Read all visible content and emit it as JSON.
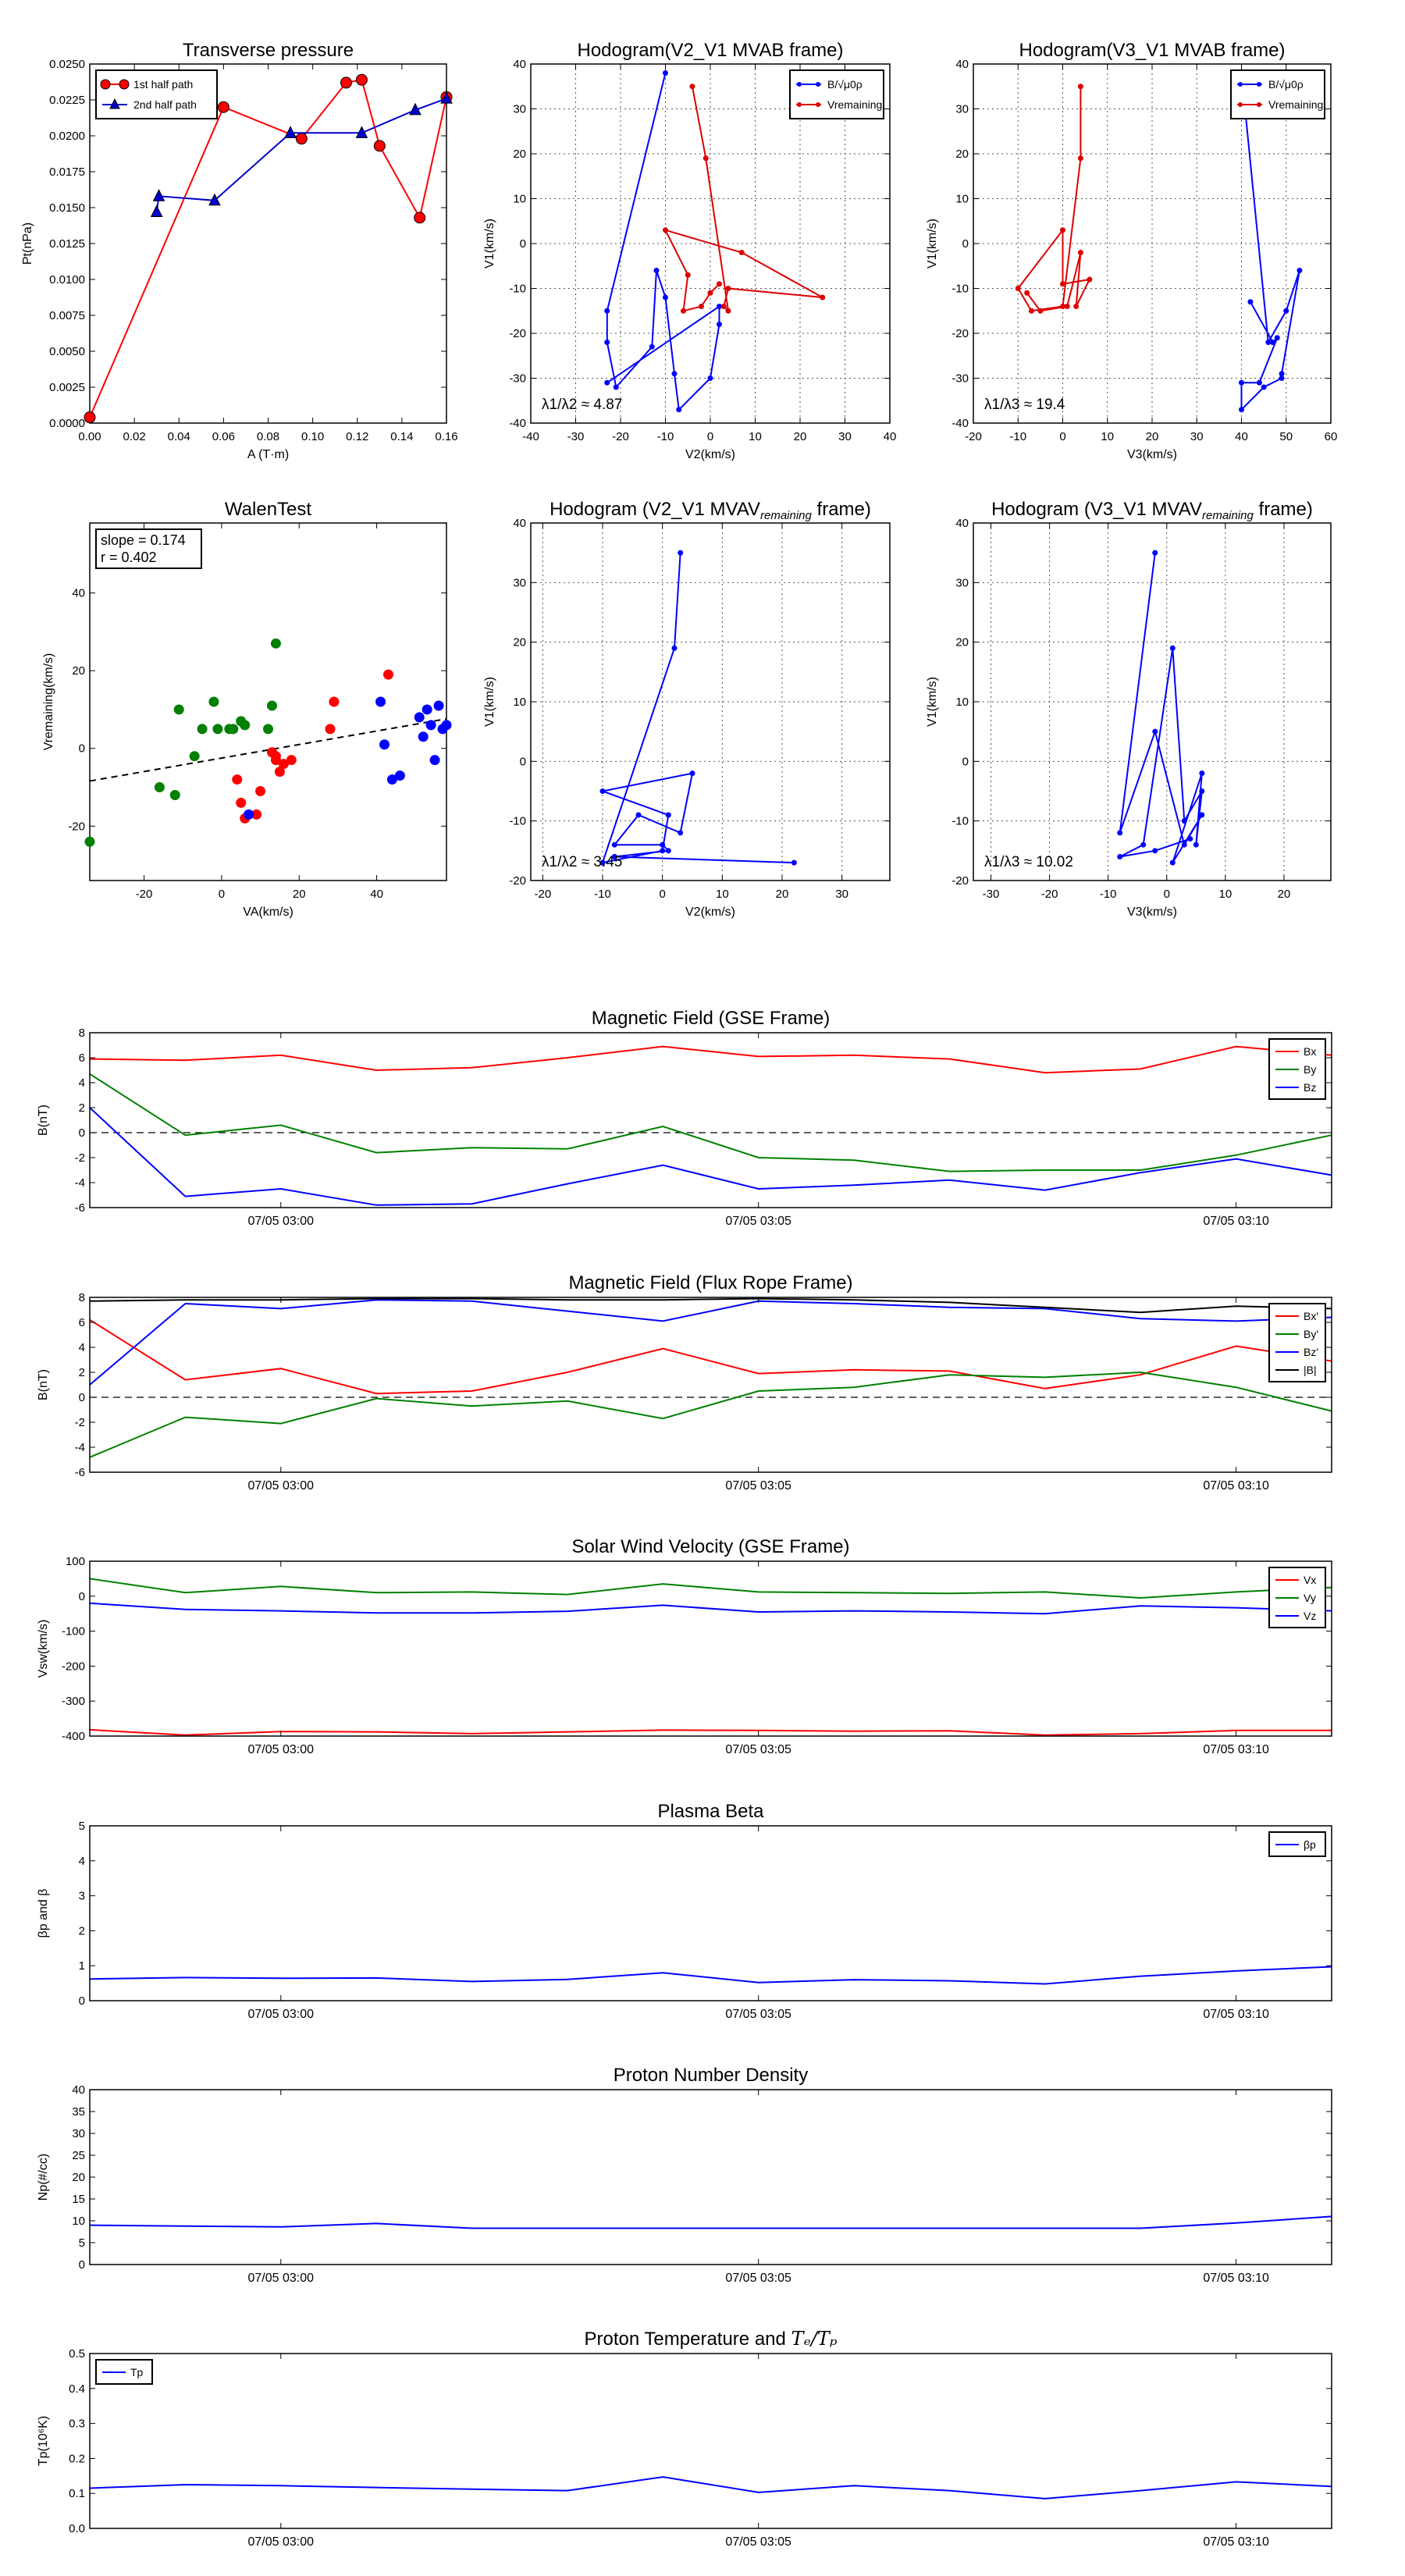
{
  "time_axis": {
    "tick_labels": [
      "07/05 03:00",
      "07/05 03:05",
      "07/05 03:10"
    ],
    "tick_index": [
      2,
      7,
      12
    ],
    "n_points": 14
  },
  "chart_data": [
    {
      "id": "transverse-pressure",
      "type": "line",
      "title": "Transverse pressure",
      "xlabel": "A (T·m)",
      "ylabel": "Pt(nPa)",
      "xlim": [
        0,
        0.16
      ],
      "ylim": [
        0,
        0.025
      ],
      "xticks": [
        0.0,
        0.02,
        0.04,
        0.06,
        0.08,
        0.1,
        0.12,
        0.14,
        0.16
      ],
      "xtick_labels": [
        "0.00",
        "0.02",
        "0.04",
        "0.06",
        "0.08",
        "0.10",
        "0.12",
        "0.14",
        "0.16"
      ],
      "yticks": [
        0,
        0.0025,
        0.005,
        0.0075,
        0.01,
        0.0125,
        0.015,
        0.0175,
        0.02,
        0.0225,
        0.025
      ],
      "ytick_labels": [
        "0.0000",
        "0.0025",
        "0.0050",
        "0.0075",
        "0.0100",
        "0.0125",
        "0.0150",
        "0.0175",
        "0.0200",
        "0.0225",
        "0.0250"
      ],
      "grid": false,
      "legend": "top-left",
      "series": [
        {
          "name": "1st half path",
          "color": "#ff0000",
          "marker": "circle",
          "x": [
            0.0,
            0.06,
            0.095,
            0.115,
            0.122,
            0.13,
            0.148,
            0.16
          ],
          "y": [
            0.0004,
            0.022,
            0.0198,
            0.0237,
            0.0239,
            0.0193,
            0.0143,
            0.0227
          ]
        },
        {
          "name": "2nd half path",
          "color": "#0000cc",
          "marker": "triangle",
          "x": [
            0.03,
            0.031,
            0.056,
            0.09,
            0.122,
            0.146,
            0.16
          ],
          "y": [
            0.0147,
            0.0158,
            0.0155,
            0.0202,
            0.0202,
            0.0218,
            0.0226
          ]
        }
      ]
    },
    {
      "id": "hodogram-v2-v1-mvab",
      "type": "line",
      "title": "Hodogram(V2_V1 MVAB frame)",
      "xlabel": "V2(km/s)",
      "ylabel": "V1(km/s)",
      "xlim": [
        -40,
        40
      ],
      "ylim": [
        -40,
        40
      ],
      "xticks": [
        -40,
        -30,
        -20,
        -10,
        0,
        10,
        20,
        30,
        40
      ],
      "yticks": [
        -40,
        -30,
        -20,
        -10,
        0,
        10,
        20,
        30,
        40
      ],
      "grid": true,
      "legend": "top-right",
      "annotation": "λ1/λ2 ≈ 4.87",
      "series": [
        {
          "name": "B/√μ0ρ",
          "color": "#0000ff",
          "marker": "dot",
          "x": [
            -10,
            -23,
            -23,
            -21,
            -13,
            -12,
            -10,
            -8,
            -7,
            0,
            2,
            2,
            -23
          ],
          "y": [
            38,
            -15,
            -22,
            -32,
            -23,
            -6,
            -12,
            -29,
            -37,
            -30,
            -18,
            -14,
            -31
          ]
        },
        {
          "name": "Vremaining",
          "color": "#dd0000",
          "marker": "dot",
          "x": [
            -4,
            -1,
            4,
            3,
            4,
            25,
            7,
            -10,
            -5,
            -6,
            -2,
            0,
            2
          ],
          "y": [
            35,
            19,
            -15,
            -14,
            -10,
            -12,
            -2,
            3,
            -7,
            -15,
            -14,
            -11,
            -9
          ]
        }
      ]
    },
    {
      "id": "hodogram-v3-v1-mvab",
      "type": "line",
      "title": "Hodogram(V3_V1 MVAB frame)",
      "xlabel": "V3(km/s)",
      "ylabel": "V1(km/s)",
      "xlim": [
        -20,
        60
      ],
      "ylim": [
        -40,
        40
      ],
      "xticks": [
        -20,
        -10,
        0,
        10,
        20,
        30,
        40,
        50,
        60
      ],
      "yticks": [
        -40,
        -30,
        -20,
        -10,
        0,
        10,
        20,
        30,
        40
      ],
      "grid": true,
      "legend": "top-right",
      "annotation": "λ1/λ3 ≈ 19.4",
      "series": [
        {
          "name": "B/√μ0ρ",
          "color": "#0000ff",
          "marker": "dot",
          "x": [
            40,
            46,
            50,
            53,
            49,
            49,
            45,
            40,
            40,
            44,
            48,
            47,
            42
          ],
          "y": [
            38,
            -22,
            -15,
            -6,
            -29,
            -30,
            -32,
            -37,
            -31,
            -31,
            -21,
            -22,
            -13
          ]
        },
        {
          "name": "Vremaining",
          "color": "#dd0000",
          "marker": "dot",
          "x": [
            4,
            4,
            0,
            -7,
            -10,
            0,
            0,
            6,
            3,
            4,
            1,
            -5,
            -8
          ],
          "y": [
            35,
            19,
            -14,
            -15,
            -10,
            3,
            -9,
            -8,
            -14,
            -2,
            -14,
            -15,
            -11
          ]
        }
      ]
    },
    {
      "id": "walen-test",
      "type": "scatter",
      "title": "WalenTest",
      "xlabel": "VA(km/s)",
      "ylabel": "Vremaining(km/s)",
      "xlim": [
        -34,
        58
      ],
      "ylim": [
        -34,
        58
      ],
      "xticks": [
        -20,
        0,
        20,
        40
      ],
      "yticks": [
        -20,
        0,
        20,
        40
      ],
      "grid": false,
      "annotation_slope": "slope = 0.174",
      "annotation_r": "r = 0.402",
      "fit_line": {
        "x": [
          -34,
          58
        ],
        "y": [
          -8.4,
          7.6
        ]
      },
      "series": [
        {
          "name": "",
          "color": "#008000",
          "x": [
            -34,
            -16,
            -12,
            -11,
            -7,
            -5,
            -2,
            -1,
            2,
            3,
            5,
            6,
            12,
            13,
            14
          ],
          "y": [
            -24,
            -10,
            -12,
            10,
            -2,
            5,
            12,
            5,
            5,
            5,
            7,
            6,
            5,
            11,
            27
          ]
        },
        {
          "name": "",
          "color": "#ff0000",
          "x": [
            4,
            5,
            6,
            9,
            10,
            13,
            14,
            14,
            15,
            16,
            18,
            28,
            29,
            43
          ],
          "y": [
            -8,
            -14,
            -18,
            -17,
            -11,
            -1,
            -3,
            -2,
            -6,
            -4,
            -3,
            5,
            12,
            19
          ]
        },
        {
          "name": "",
          "color": "#0000ff",
          "x": [
            7,
            41,
            42,
            44,
            46,
            51,
            52,
            53,
            54,
            55,
            56,
            57,
            58
          ],
          "y": [
            -17,
            12,
            1,
            -8,
            -7,
            8,
            3,
            10,
            6,
            -3,
            11,
            5,
            6
          ]
        }
      ]
    },
    {
      "id": "hodogram-v2-v1-mvav",
      "type": "line",
      "title": "Hodogram (V2_V1 MVAV",
      "title_sub": "remaining",
      "title_end": " frame)",
      "xlabel": "V2(km/s)",
      "ylabel": "V1(km/s)",
      "xlim": [
        -22,
        38
      ],
      "ylim": [
        -20,
        40
      ],
      "xticks": [
        -20,
        -10,
        0,
        10,
        20,
        30
      ],
      "yticks": [
        -20,
        -10,
        0,
        10,
        20,
        30,
        40
      ],
      "grid": true,
      "annotation": "λ1/λ2 ≈ 3.45",
      "series": [
        {
          "name": "",
          "color": "#0000ff",
          "marker": "dot",
          "x": [
            3,
            2,
            -10,
            0,
            1,
            -10,
            5,
            3,
            -4,
            -8,
            0,
            1,
            -8,
            -8,
            22
          ],
          "y": [
            35,
            19,
            -17,
            -15,
            -9,
            -5,
            -2,
            -12,
            -9,
            -14,
            -14,
            -15,
            -16,
            -16,
            -17
          ]
        }
      ]
    },
    {
      "id": "hodogram-v3-v1-mvav",
      "type": "line",
      "title": "Hodogram (V3_V1 MVAV",
      "title_sub": "remaining",
      "title_end": " frame)",
      "xlabel": "V3(km/s)",
      "ylabel": "V1(km/s)",
      "xlim": [
        -33,
        28
      ],
      "ylim": [
        -20,
        40
      ],
      "xticks": [
        -30,
        -20,
        -10,
        0,
        10,
        20
      ],
      "yticks": [
        -20,
        -10,
        0,
        10,
        20,
        30,
        40
      ],
      "grid": true,
      "annotation": "λ1/λ3 ≈ 10.02",
      "series": [
        {
          "name": "",
          "color": "#0000ff",
          "marker": "dot",
          "x": [
            -2,
            -8,
            -2,
            3,
            6,
            1,
            6,
            5,
            6,
            3,
            1,
            -4,
            -8,
            -2,
            4
          ],
          "y": [
            35,
            -12,
            5,
            -14,
            -9,
            -17,
            -2,
            -14,
            -5,
            -10,
            19,
            -14,
            -16,
            -15,
            -13
          ]
        }
      ]
    },
    {
      "id": "magnetic-field-gse",
      "type": "line",
      "title": "Magnetic Field (GSE Frame)",
      "ylabel": "B(nT)",
      "ylim": [
        -6,
        8
      ],
      "yticks": [
        -6,
        -4,
        -2,
        0,
        2,
        4,
        6,
        8
      ],
      "zero_line": true,
      "legend": "top-right",
      "series": [
        {
          "name": "Bx",
          "color": "#ff0000",
          "values": [
            5.9,
            5.8,
            6.2,
            5.0,
            5.2,
            6.0,
            6.9,
            6.1,
            6.2,
            5.9,
            4.8,
            5.1,
            6.9,
            6.2
          ]
        },
        {
          "name": "By",
          "color": "#008000",
          "values": [
            4.7,
            -0.2,
            0.6,
            -1.6,
            -1.2,
            -1.3,
            0.5,
            -2.0,
            -2.2,
            -3.1,
            -3.0,
            -3.0,
            -1.8,
            -0.2
          ]
        },
        {
          "name": "Bz",
          "color": "#0000ff",
          "values": [
            2.0,
            -5.1,
            -4.5,
            -5.8,
            -5.7,
            -4.1,
            -2.6,
            -4.5,
            -4.2,
            -3.8,
            -4.6,
            -3.2,
            -2.1,
            -3.4
          ]
        }
      ]
    },
    {
      "id": "magnetic-field-flux-rope",
      "type": "line",
      "title": "Magnetic Field (Flux Rope Frame)",
      "ylabel": "B(nT)",
      "ylim": [
        -6,
        8
      ],
      "yticks": [
        -6,
        -4,
        -2,
        0,
        2,
        4,
        6,
        8
      ],
      "zero_line": true,
      "legend": "top-right",
      "series": [
        {
          "name": "Bx'",
          "color": "#ff0000",
          "values": [
            6.2,
            1.4,
            2.3,
            0.3,
            0.5,
            2.0,
            3.9,
            1.9,
            2.2,
            2.1,
            0.7,
            1.8,
            4.1,
            2.9
          ]
        },
        {
          "name": "By'",
          "color": "#008000",
          "values": [
            -4.8,
            -1.6,
            -2.1,
            -0.1,
            -0.7,
            -0.3,
            -1.7,
            0.5,
            0.8,
            1.8,
            1.6,
            2.0,
            0.8,
            -1.1
          ]
        },
        {
          "name": "Bz'",
          "color": "#0000ff",
          "values": [
            1.0,
            7.5,
            7.1,
            7.8,
            7.7,
            6.9,
            6.1,
            7.7,
            7.5,
            7.2,
            7.1,
            6.3,
            6.1,
            6.4
          ]
        },
        {
          "name": "|B|",
          "color": "#000000",
          "values": [
            7.7,
            7.8,
            7.8,
            7.9,
            7.9,
            7.8,
            7.8,
            7.9,
            7.8,
            7.6,
            7.2,
            6.8,
            7.3,
            7.1
          ]
        }
      ]
    },
    {
      "id": "solar-wind-velocity",
      "type": "line",
      "title": "Solar Wind Velocity (GSE Frame)",
      "ylabel": "Vsw(km/s)",
      "ylim": [
        -400,
        100
      ],
      "yticks": [
        -400,
        -300,
        -200,
        -100,
        0,
        100
      ],
      "legend": "top-right",
      "series": [
        {
          "name": "Vx",
          "color": "#ff0000",
          "values": [
            -382,
            -397,
            -387,
            -388,
            -393,
            -388,
            -383,
            -384,
            -386,
            -385,
            -397,
            -393,
            -384,
            -384
          ]
        },
        {
          "name": "Vy",
          "color": "#008000",
          "values": [
            50,
            10,
            28,
            10,
            12,
            5,
            35,
            12,
            10,
            8,
            12,
            -5,
            12,
            25
          ]
        },
        {
          "name": "Vz",
          "color": "#0000ff",
          "values": [
            -20,
            -38,
            -42,
            -48,
            -48,
            -43,
            -26,
            -45,
            -42,
            -45,
            -50,
            -28,
            -33,
            -42
          ]
        }
      ]
    },
    {
      "id": "plasma-beta",
      "type": "line",
      "title": "Plasma Beta",
      "ylabel": "βp and β",
      "ylim": [
        0,
        5
      ],
      "yticks": [
        0,
        1,
        2,
        3,
        4,
        5
      ],
      "legend": "top-right",
      "series": [
        {
          "name": "βp",
          "color": "#0000ff",
          "values": [
            0.62,
            0.66,
            0.64,
            0.65,
            0.55,
            0.61,
            0.8,
            0.52,
            0.6,
            0.57,
            0.48,
            0.7,
            0.85,
            0.97
          ]
        }
      ]
    },
    {
      "id": "proton-number-density",
      "type": "line",
      "title": "Proton Number Density",
      "ylabel": "Np(#/cc)",
      "ylim": [
        0,
        40
      ],
      "yticks": [
        0,
        5,
        10,
        15,
        20,
        25,
        30,
        35,
        40
      ],
      "series": [
        {
          "name": "",
          "color": "#0000ff",
          "values": [
            9.0,
            8.8,
            8.6,
            9.4,
            8.3,
            8.3,
            8.3,
            8.3,
            8.3,
            8.3,
            8.3,
            8.3,
            9.5,
            11.0
          ]
        }
      ]
    },
    {
      "id": "proton-temperature",
      "type": "line",
      "title": "Proton Temperature and ",
      "title_math": "Tₑ/Tₚ",
      "ylabel": "Tp(10⁶K)",
      "ylim": [
        0,
        0.5
      ],
      "yticks": [
        0,
        0.1,
        0.2,
        0.3,
        0.4,
        0.5
      ],
      "ytick_labels": [
        "0.0",
        "0.1",
        "0.2",
        "0.3",
        "0.4",
        "0.5"
      ],
      "legend": "top-left",
      "series": [
        {
          "name": "Tp",
          "color": "#0000ff",
          "values": [
            0.115,
            0.125,
            0.122,
            0.117,
            0.112,
            0.108,
            0.147,
            0.103,
            0.122,
            0.108,
            0.085,
            0.108,
            0.133,
            0.12
          ]
        }
      ]
    }
  ]
}
